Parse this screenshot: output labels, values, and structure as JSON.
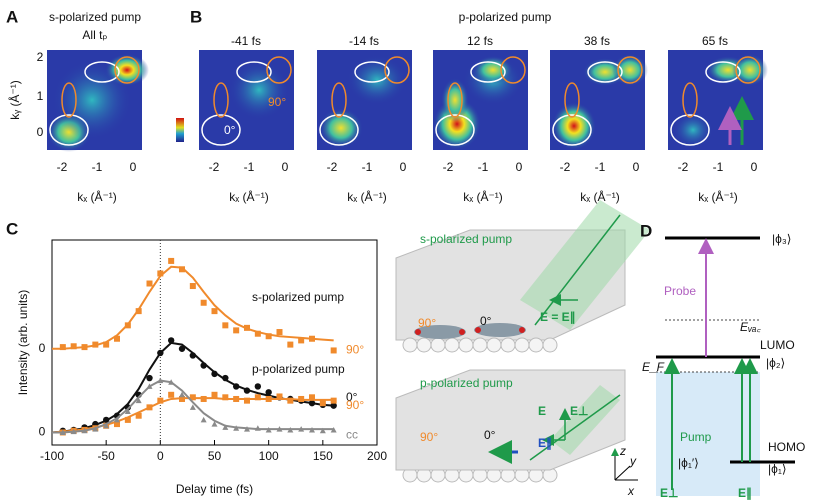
{
  "panel_a": {
    "label": "A",
    "title": "s-polarized pump",
    "subtitle": "All tₚ",
    "xticks": [
      "-2",
      "-1",
      "0"
    ],
    "yticks": [
      "2",
      "1",
      "0"
    ],
    "xlabel": "kₓ (Å⁻¹)",
    "ylabel": "kᵧ (Å⁻¹)"
  },
  "panel_b": {
    "label": "B",
    "title": "p-polarized pump",
    "frames": [
      "-41 fs",
      "-14 fs",
      "12 fs",
      "38 fs",
      "65 fs"
    ],
    "xticks": [
      "-2",
      "-1",
      "0"
    ],
    "xlabel": "kₓ (Å⁻¹)",
    "annotations": [
      "90°",
      "0°"
    ]
  },
  "chart_data": {
    "type": "line",
    "panel_label": "C",
    "xlabel": "Delay time (fs)",
    "ylabel": "Intensity (arb. units)",
    "annotations": [
      "s-polarized pump",
      "p-polarized pump"
    ],
    "x": [
      -100,
      -90,
      -80,
      -70,
      -60,
      -50,
      -40,
      -30,
      -20,
      -10,
      0,
      10,
      20,
      30,
      40,
      50,
      60,
      70,
      80,
      90,
      100,
      110,
      120,
      130,
      140,
      150,
      160
    ],
    "xlim": [
      -100,
      200
    ],
    "xticks": [
      -100,
      -50,
      0,
      50,
      100,
      150,
      200
    ],
    "ylim": [
      -0.15,
      2.3
    ],
    "yticks": [
      {
        "value": 0,
        "label": "0"
      },
      {
        "value": 1,
        "label": "0"
      }
    ],
    "series": [
      {
        "name": "90°",
        "color": "#f08a2c",
        "marker": "square",
        "values": [
          null,
          1.02,
          1.03,
          1.02,
          1.05,
          1.05,
          1.12,
          1.28,
          1.45,
          1.78,
          1.9,
          2.05,
          1.95,
          1.75,
          1.55,
          1.45,
          1.28,
          1.22,
          1.25,
          1.18,
          1.15,
          1.2,
          1.05,
          1.1,
          1.12,
          null,
          0.98
        ]
      },
      {
        "color": "#f08a2c",
        "marker": "line",
        "values": [
          1.0,
          1.0,
          1.01,
          1.02,
          1.04,
          1.08,
          1.16,
          1.29,
          1.47,
          1.68,
          1.87,
          1.98,
          1.97,
          1.85,
          1.68,
          1.52,
          1.4,
          1.3,
          1.24,
          1.2,
          1.17,
          1.15,
          1.14,
          1.13,
          1.12,
          1.11,
          1.1
        ]
      },
      {
        "name": "0°",
        "color": "#111111",
        "marker": "circle",
        "values": [
          null,
          0.02,
          0.03,
          0.06,
          0.1,
          0.15,
          0.2,
          0.3,
          0.45,
          0.65,
          0.95,
          1.1,
          1.0,
          0.92,
          0.8,
          0.7,
          0.65,
          0.55,
          0.5,
          0.55,
          0.48,
          0.42,
          0.4,
          0.38,
          0.35,
          0.33,
          0.32
        ]
      },
      {
        "color": "#111111",
        "marker": "line",
        "values": [
          0,
          0.01,
          0.03,
          0.05,
          0.09,
          0.14,
          0.22,
          0.34,
          0.52,
          0.75,
          0.95,
          1.07,
          1.05,
          0.95,
          0.83,
          0.72,
          0.63,
          0.56,
          0.51,
          0.47,
          0.44,
          0.41,
          0.39,
          0.37,
          0.35,
          0.33,
          0.32
        ]
      },
      {
        "name": "90°",
        "color": "#f08a2c",
        "marker": "square",
        "values": [
          null,
          0.0,
          0.02,
          0.03,
          0.05,
          0.08,
          0.1,
          0.15,
          0.2,
          0.3,
          0.38,
          0.45,
          0.4,
          0.42,
          0.4,
          0.45,
          0.42,
          0.4,
          0.38,
          0.42,
          0.4,
          0.43,
          0.38,
          0.4,
          0.42,
          0.35,
          0.38
        ]
      },
      {
        "color": "#f08a2c",
        "marker": "line",
        "values": [
          0.0,
          0.01,
          0.02,
          0.04,
          0.06,
          0.09,
          0.13,
          0.18,
          0.24,
          0.3,
          0.36,
          0.4,
          0.41,
          0.41,
          0.41,
          0.41,
          0.4,
          0.4,
          0.4,
          0.4,
          0.4,
          0.4,
          0.4,
          0.39,
          0.39,
          0.39,
          0.39
        ]
      },
      {
        "name": "cc",
        "color": "#8a8a8a",
        "marker": "triangle",
        "values": [
          null,
          0.0,
          0.01,
          0.02,
          0.04,
          0.08,
          0.15,
          0.25,
          0.38,
          0.55,
          0.62,
          0.6,
          0.45,
          0.3,
          0.15,
          0.1,
          0.06,
          0.05,
          0.04,
          0.05,
          0.03,
          0.04,
          0.03,
          0.04,
          0.03,
          0.02,
          0.03
        ]
      },
      {
        "color": "#8a8a8a",
        "marker": "line",
        "values": [
          0,
          0,
          0.01,
          0.02,
          0.05,
          0.1,
          0.17,
          0.28,
          0.42,
          0.55,
          0.62,
          0.6,
          0.5,
          0.36,
          0.23,
          0.14,
          0.08,
          0.06,
          0.05,
          0.04,
          0.04,
          0.04,
          0.04,
          0.04,
          0.04,
          0.04,
          0.04
        ]
      }
    ]
  },
  "panel_mid": {
    "top": {
      "title": "s-polarized pump",
      "angle_90": "90°",
      "angle_0": "0°",
      "field": "E = E∥"
    },
    "bottom": {
      "title": "p-polarized pump",
      "angle_90": "90°",
      "angle_0": "0°",
      "field": "E",
      "field_perp": "E⊥",
      "field_par": "E∥"
    },
    "axes": [
      "z",
      "y",
      "x"
    ]
  },
  "panel_d": {
    "label": "D",
    "phi3": "|ϕ₃⟩",
    "probe": "Probe",
    "evac": "Eᵥₐ꜀",
    "lumo": "LUMO",
    "phi2": "|ϕ₂⟩",
    "ef": "E_F",
    "pump": "Pump",
    "homo": "HOMO",
    "phi1": "|ϕ₁⟩",
    "phi1p": "|ϕ₁′⟩",
    "e_perp": "E⊥",
    "e_par": "E∥"
  }
}
